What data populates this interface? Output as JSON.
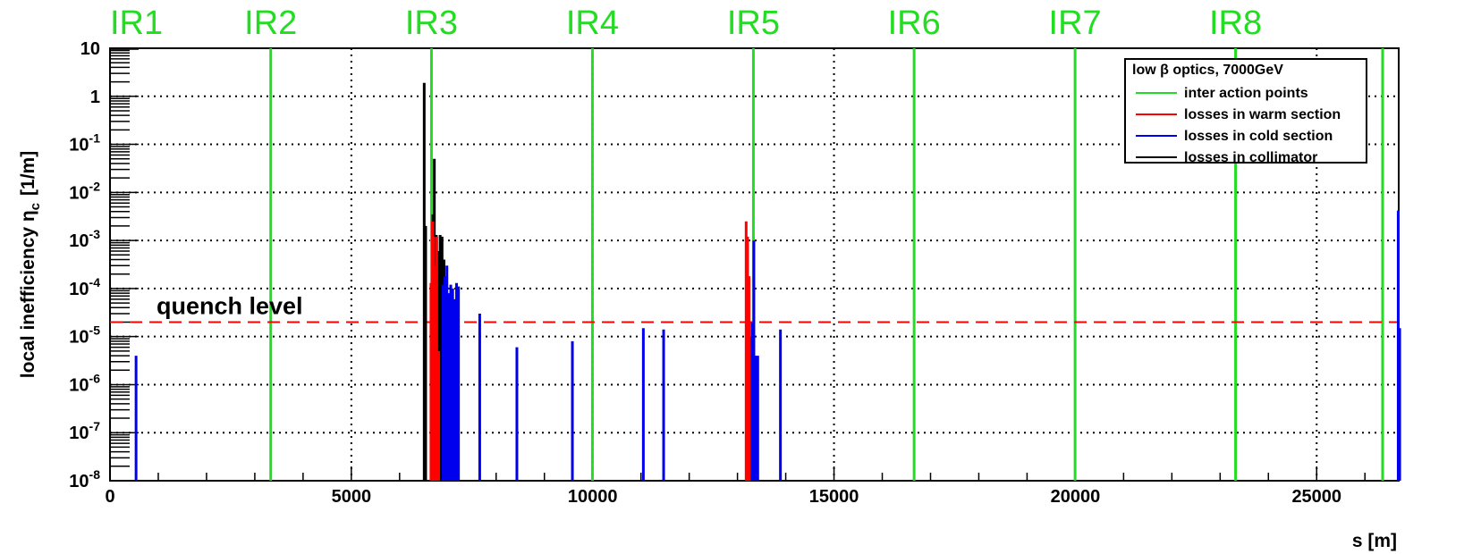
{
  "chart_data": {
    "type": "line",
    "title": "",
    "xlabel": "s [m]",
    "ylabel_main": "local inefficiency η",
    "ylabel_sub": "c",
    "ylabel_unit": "[1/m]",
    "xlim": [
      0,
      26700
    ],
    "ylim": [
      1e-08,
      10
    ],
    "y_scale": "log",
    "grid": true,
    "legend_position": "top-right",
    "x_ticks": [
      {
        "value": 0,
        "label": "0"
      },
      {
        "value": 5000,
        "label": "5000"
      },
      {
        "value": 10000,
        "label": "10000"
      },
      {
        "value": 15000,
        "label": "15000"
      },
      {
        "value": 20000,
        "label": "20000"
      },
      {
        "value": 25000,
        "label": "25000"
      }
    ],
    "y_ticks": [
      {
        "value": 10,
        "base": "10",
        "exp": ""
      },
      {
        "value": 1,
        "base": "1",
        "exp": ""
      },
      {
        "value": 0.1,
        "base": "10",
        "exp": "-1"
      },
      {
        "value": 0.01,
        "base": "10",
        "exp": "-2"
      },
      {
        "value": 0.001,
        "base": "10",
        "exp": "-3"
      },
      {
        "value": 0.0001,
        "base": "10",
        "exp": "-4"
      },
      {
        "value": 1e-05,
        "base": "10",
        "exp": "-5"
      },
      {
        "value": 1e-06,
        "base": "10",
        "exp": "-6"
      },
      {
        "value": 1e-07,
        "base": "10",
        "exp": "-7"
      },
      {
        "value": 1e-08,
        "base": "10",
        "exp": "-8"
      }
    ],
    "interaction_points": [
      {
        "name": "IR1",
        "s": 0
      },
      {
        "name": "IR2",
        "s": 3330
      },
      {
        "name": "IR3",
        "s": 6660
      },
      {
        "name": "IR4",
        "s": 9995
      },
      {
        "name": "IR5",
        "s": 13330
      },
      {
        "name": "IR6",
        "s": 16660
      },
      {
        "name": "IR7",
        "s": 19995
      },
      {
        "name": "IR8",
        "s": 23320
      }
    ],
    "quench_level": {
      "value": 2e-05,
      "label": "quench level"
    },
    "legend": {
      "title": "low β optics, 7000GeV",
      "entries": [
        {
          "label": "inter action points",
          "color": "#22dd22"
        },
        {
          "label": "losses in warm section",
          "color": "#ff0000"
        },
        {
          "label": "losses in cold section",
          "color": "#0000ee"
        },
        {
          "label": "losses in collimator",
          "color": "#000000"
        }
      ]
    },
    "series": [
      {
        "name": "losses in collimator",
        "color": "#000000",
        "points": [
          {
            "s": 6510,
            "y": 1.9
          },
          {
            "s": 6540,
            "y": 0.002
          },
          {
            "s": 6690,
            "y": 0.0035
          },
          {
            "s": 6720,
            "y": 0.05
          },
          {
            "s": 6760,
            "y": 0.0013
          },
          {
            "s": 6800,
            "y": 0.0006
          },
          {
            "s": 6840,
            "y": 0.0013
          },
          {
            "s": 6880,
            "y": 0.0012
          },
          {
            "s": 6920,
            "y": 0.0004
          }
        ]
      },
      {
        "name": "losses in warm section",
        "color": "#ff0000",
        "points": [
          {
            "s": 6650,
            "y": 0.00013
          },
          {
            "s": 6680,
            "y": 0.0025
          },
          {
            "s": 6710,
            "y": 0.0012
          },
          {
            "s": 6740,
            "y": 0.0003
          },
          {
            "s": 6770,
            "y": 0.0012
          },
          {
            "s": 6810,
            "y": 5e-06
          },
          {
            "s": 13180,
            "y": 0.0025
          },
          {
            "s": 13210,
            "y": 0.0012
          },
          {
            "s": 13240,
            "y": 0.00018
          },
          {
            "s": 13260,
            "y": 1e-05
          },
          {
            "s": 13280,
            "y": 5e-06
          }
        ]
      },
      {
        "name": "losses in cold section",
        "color": "#0000ee",
        "points": [
          {
            "s": 540,
            "y": 4e-06
          },
          {
            "s": 6900,
            "y": 0.00012
          },
          {
            "s": 6940,
            "y": 0.00018
          },
          {
            "s": 6980,
            "y": 0.0003
          },
          {
            "s": 7020,
            "y": 8e-05
          },
          {
            "s": 7060,
            "y": 0.00012
          },
          {
            "s": 7100,
            "y": 0.0001
          },
          {
            "s": 7140,
            "y": 6e-05
          },
          {
            "s": 7180,
            "y": 0.00013
          },
          {
            "s": 7220,
            "y": 0.00011
          },
          {
            "s": 7660,
            "y": 3e-05
          },
          {
            "s": 8430,
            "y": 6e-06
          },
          {
            "s": 9580,
            "y": 8e-06
          },
          {
            "s": 11050,
            "y": 1.5e-05
          },
          {
            "s": 11470,
            "y": 1.4e-05
          },
          {
            "s": 13300,
            "y": 2e-05
          },
          {
            "s": 13340,
            "y": 0.001
          },
          {
            "s": 13380,
            "y": 4e-06
          },
          {
            "s": 13420,
            "y": 4e-06
          },
          {
            "s": 13890,
            "y": 1.4e-05
          },
          {
            "s": 26690,
            "y": 0.0042
          },
          {
            "s": 26720,
            "y": 1.5e-05
          }
        ]
      }
    ]
  }
}
